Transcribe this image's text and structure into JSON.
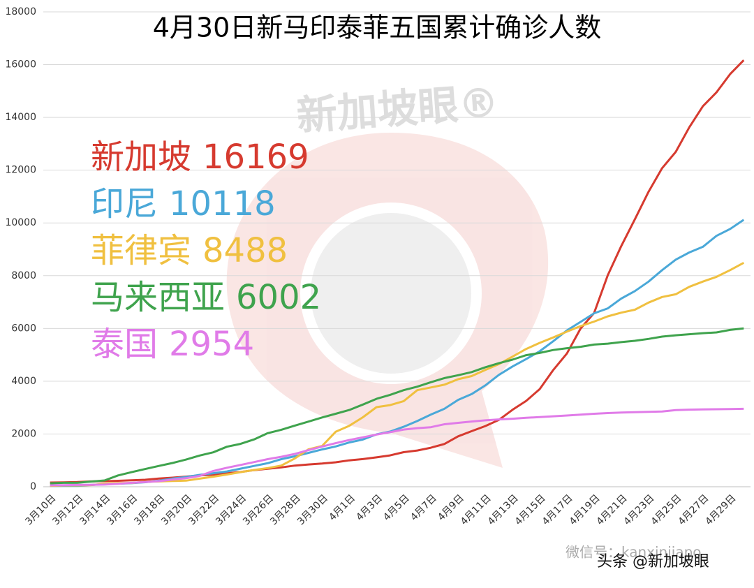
{
  "chart_data": {
    "type": "line",
    "title": "4月30日新马印泰菲五国累计确诊人数",
    "categories": [
      "3月10日",
      null,
      "3月12日",
      null,
      "3月14日",
      null,
      "3月16日",
      null,
      "3月18日",
      null,
      "3月20日",
      null,
      "3月22日",
      null,
      "3月24日",
      null,
      "3月26日",
      null,
      "3月28日",
      null,
      "3月30日",
      null,
      "4月1日",
      null,
      "4月3日",
      null,
      "4月5日",
      null,
      "4月7日",
      null,
      "4月9日",
      null,
      "4月11日",
      null,
      "4月13日",
      null,
      "4月15日",
      null,
      "4月17日",
      null,
      "4月19日",
      null,
      "4月21日",
      null,
      "4月23日",
      null,
      "4月25日",
      null,
      "4月27日",
      null,
      "4月29日",
      null
    ],
    "series": [
      {
        "name": "新加坡",
        "color": "#d63a2f",
        "values": [
          160,
          166,
          178,
          200,
          212,
          226,
          243,
          266,
          313,
          345,
          385,
          432,
          455,
          509,
          558,
          631,
          683,
          732,
          802,
          844,
          879,
          926,
          1000,
          1049,
          1114,
          1189,
          1309,
          1375,
          1481,
          1623,
          1910,
          2108,
          2299,
          2532,
          2918,
          3252,
          3699,
          4427,
          5050,
          5992,
          6588,
          8014,
          9125,
          10141,
          11178,
          12075,
          12693,
          13624,
          14423,
          14951,
          15641,
          16169
        ]
      },
      {
        "name": "印尼",
        "color": "#4aa8d8",
        "values": [
          27,
          34,
          34,
          69,
          96,
          117,
          134,
          172,
          227,
          309,
          369,
          450,
          514,
          579,
          686,
          790,
          893,
          1046,
          1155,
          1285,
          1414,
          1528,
          1677,
          1790,
          1986,
          2092,
          2273,
          2491,
          2738,
          2956,
          3293,
          3512,
          3842,
          4241,
          4557,
          4839,
          5136,
          5516,
          5923,
          6248,
          6575,
          6760,
          7135,
          7418,
          7775,
          8211,
          8607,
          8882,
          9096,
          9511,
          9771,
          10118
        ]
      },
      {
        "name": "菲律宾",
        "color": "#f0c040",
        "values": [
          33,
          49,
          52,
          64,
          111,
          140,
          142,
          187,
          202,
          217,
          230,
          307,
          380,
          462,
          552,
          636,
          707,
          803,
          1075,
          1418,
          1546,
          2084,
          2311,
          2633,
          3018,
          3094,
          3246,
          3660,
          3764,
          3870,
          4076,
          4195,
          4428,
          4648,
          4932,
          5223,
          5453,
          5660,
          5878,
          6087,
          6259,
          6459,
          6599,
          6710,
          6981,
          7192,
          7294,
          7579,
          7777,
          7958,
          8212,
          8488
        ]
      },
      {
        "name": "马来西亚",
        "color": "#3fa34d",
        "values": [
          129,
          149,
          149,
          197,
          238,
          428,
          553,
          673,
          790,
          900,
          1030,
          1183,
          1306,
          1518,
          1624,
          1796,
          2031,
          2161,
          2320,
          2470,
          2626,
          2766,
          2908,
          3116,
          3333,
          3483,
          3662,
          3793,
          3963,
          4119,
          4228,
          4346,
          4530,
          4683,
          4817,
          4987,
          5072,
          5182,
          5251,
          5305,
          5389,
          5425,
          5482,
          5532,
          5603,
          5691,
          5742,
          5780,
          5820,
          5851,
          5945,
          6002
        ]
      },
      {
        "name": "泰国",
        "color": "#e07be8",
        "values": [
          53,
          59,
          70,
          75,
          82,
          114,
          147,
          177,
          212,
          272,
          322,
          411,
          599,
          721,
          827,
          934,
          1045,
          1136,
          1245,
          1388,
          1524,
          1651,
          1771,
          1875,
          1978,
          2067,
          2169,
          2220,
          2258,
          2369,
          2423,
          2473,
          2518,
          2551,
          2579,
          2613,
          2643,
          2672,
          2700,
          2733,
          2765,
          2792,
          2811,
          2826,
          2839,
          2854,
          2907,
          2922,
          2931,
          2938,
          2947,
          2954
        ]
      }
    ],
    "ylim": [
      0,
      18000
    ],
    "yticks": [
      0,
      2000,
      4000,
      6000,
      8000,
      10000,
      12000,
      14000,
      16000,
      18000
    ],
    "grid": true
  },
  "watermarks": {
    "logo": "新加坡眼®",
    "wechat": "微信号：kanxinjiapo",
    "toutiao": "头条 @新加坡眼"
  }
}
